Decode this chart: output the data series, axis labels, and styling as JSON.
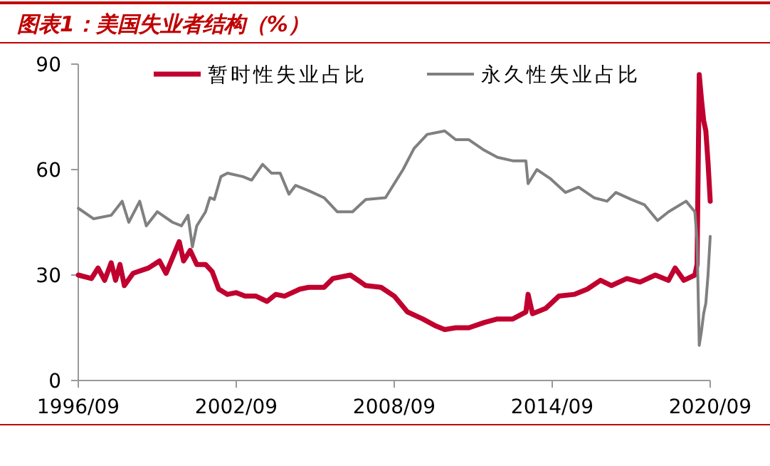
{
  "chart_data": {
    "type": "line",
    "title": "图表1：美国失业者结构（%）",
    "legend": "top",
    "ylim": [
      0,
      90
    ],
    "yticks": [
      0,
      30,
      60,
      90
    ],
    "xlim": [
      "1996-09",
      "2020-09"
    ],
    "xticks": [
      {
        "value": "1996-09",
        "label": "1996/09"
      },
      {
        "value": "2002-09",
        "label": "2002/09"
      },
      {
        "value": "2008-09",
        "label": "2008/09"
      },
      {
        "value": "2014-09",
        "label": "2014/09"
      },
      {
        "value": "2020-09",
        "label": "2020/09"
      }
    ],
    "series": [
      {
        "name": "暂时性失业占比",
        "color": "#c0002f",
        "x": [
          "1996-09",
          "1997-03",
          "1997-06",
          "1997-09",
          "1997-12",
          "1998-02",
          "1998-04",
          "1998-06",
          "1998-10",
          "1999-05",
          "1999-10",
          "2000-01",
          "2000-07",
          "2000-09",
          "2000-12",
          "2001-03",
          "2001-07",
          "2001-10",
          "2002-01",
          "2002-05",
          "2002-09",
          "2003-01",
          "2003-06",
          "2003-11",
          "2004-03",
          "2004-07",
          "2005-02",
          "2005-06",
          "2006-01",
          "2006-05",
          "2007-01",
          "2007-08",
          "2008-03",
          "2008-09",
          "2009-03",
          "2009-10",
          "2010-04",
          "2010-08",
          "2011-01",
          "2011-07",
          "2012-02",
          "2012-08",
          "2013-03",
          "2013-09",
          "2013-10",
          "2013-12",
          "2014-06",
          "2014-12",
          "2015-07",
          "2016-01",
          "2016-07",
          "2016-12",
          "2017-07",
          "2018-01",
          "2018-08",
          "2019-02",
          "2019-05",
          "2019-09",
          "2020-02",
          "2020-03",
          "2020-04",
          "2020-05",
          "2020-06",
          "2020-07",
          "2020-08",
          "2020-09"
        ],
        "values": [
          30,
          29,
          32,
          28.5,
          33.5,
          28.5,
          33,
          27,
          30.5,
          32,
          34,
          30.5,
          39.5,
          34,
          37,
          33,
          33,
          31,
          26,
          24.5,
          25,
          24,
          24,
          22.5,
          24.5,
          24,
          26,
          26.5,
          26.5,
          29,
          30,
          27,
          26.5,
          24,
          19.5,
          17.5,
          15.5,
          14.5,
          15,
          15,
          16.5,
          17.5,
          17.5,
          19.5,
          24.5,
          19,
          20.5,
          24,
          24.5,
          26,
          28.5,
          27,
          29,
          28,
          30,
          28.5,
          32,
          28.5,
          30,
          33,
          87,
          80,
          74,
          71,
          62,
          51
        ]
      },
      {
        "name": "永久性失业占比",
        "color": "#808080",
        "x": [
          "1996-09",
          "1997-04",
          "1997-12",
          "1998-05",
          "1998-08",
          "1999-01",
          "1999-04",
          "1999-09",
          "2000-04",
          "2000-08",
          "2000-11",
          "2001-01",
          "2001-03",
          "2001-07",
          "2001-09",
          "2001-11",
          "2002-02",
          "2002-05",
          "2002-12",
          "2003-04",
          "2003-09",
          "2004-01",
          "2004-05",
          "2004-09",
          "2004-12",
          "2005-06",
          "2006-01",
          "2006-07",
          "2007-02",
          "2007-08",
          "2008-05",
          "2008-09",
          "2009-01",
          "2009-06",
          "2009-12",
          "2010-08",
          "2011-01",
          "2011-07",
          "2012-02",
          "2012-08",
          "2013-03",
          "2013-09",
          "2013-10",
          "2014-02",
          "2014-08",
          "2015-03",
          "2015-09",
          "2016-04",
          "2016-10",
          "2017-02",
          "2017-09",
          "2018-03",
          "2018-09",
          "2019-02",
          "2019-10",
          "2020-02",
          "2020-03",
          "2020-04",
          "2020-05",
          "2020-06",
          "2020-07",
          "2020-08",
          "2020-09"
        ],
        "values": [
          49,
          46,
          47,
          51,
          45,
          51,
          44,
          48,
          45,
          44,
          47,
          38,
          44,
          48,
          52,
          51.5,
          58,
          59,
          58,
          57,
          61.5,
          59,
          59,
          53,
          55.5,
          54,
          52,
          48,
          48,
          51.5,
          52,
          56,
          60,
          66,
          70,
          71,
          68.5,
          68.5,
          65.5,
          63.5,
          62.5,
          62.5,
          56,
          60,
          57.5,
          53.5,
          55,
          52,
          51,
          53.5,
          51.5,
          50,
          45.5,
          48,
          51,
          48,
          40,
          10,
          14,
          19,
          22,
          30,
          41
        ]
      }
    ]
  }
}
